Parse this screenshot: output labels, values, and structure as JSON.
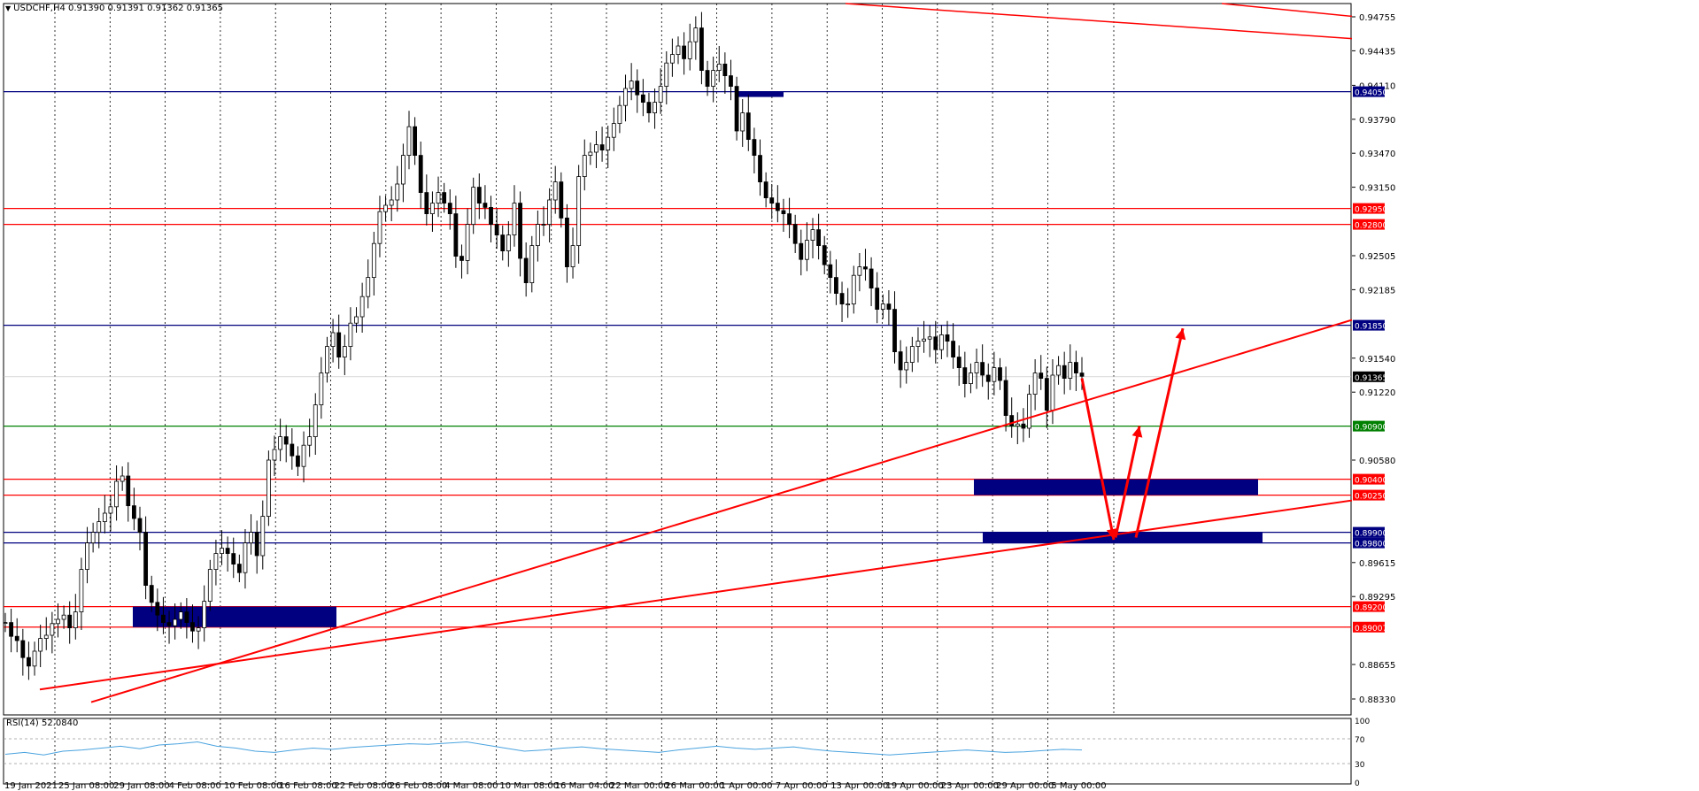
{
  "header": {
    "symbol_line": "USDCHF,H4  0.91390 0.91391 0.91362 0.91365",
    "rsi_label": "RSI(14) 52.0840"
  },
  "colors": {
    "background": "#ffffff",
    "candle": "#000000",
    "red_line": "#ff0000",
    "blue_line": "#000080",
    "green_line": "#008000",
    "zone": "#000080",
    "rsi_line": "#4aa3df",
    "current_price_tag": "#000000"
  },
  "chart_data": {
    "type": "candlestick",
    "symbol": "USDCHF",
    "timeframe": "H4",
    "ohlc_last": {
      "open": 0.9139,
      "high": 0.91391,
      "low": 0.91362,
      "close": 0.91365
    },
    "ylim": [
      0.8818,
      0.9488
    ],
    "y_ticks": [
      "0.94755",
      "0.94435",
      "0.94110",
      "0.93790",
      "0.93470",
      "0.93150",
      "0.92505",
      "0.92185",
      "0.91540",
      "0.91220",
      "0.90580",
      "0.89615",
      "0.89295",
      "0.88655",
      "0.88330"
    ],
    "x_ticks": [
      "19 Jan 2021",
      "25 Jan 08:00",
      "29 Jan 08:00",
      "4 Feb 08:00",
      "10 Feb 08:00",
      "16 Feb 08:00",
      "22 Feb 08:00",
      "26 Feb 08:00",
      "4 Mar 08:00",
      "10 Mar 08:00",
      "16 Mar 04:00",
      "22 Mar 00:00",
      "26 Mar 00:00",
      "1 Apr 00:00",
      "7 Apr 00:00",
      "13 Apr 00:00",
      "19 Apr 00:00",
      "23 Apr 00:00",
      "29 Apr 00:00",
      "5 May 00:00"
    ],
    "price_path": [
      [
        0,
        0.8905
      ],
      [
        1,
        0.8892
      ],
      [
        2,
        0.8888
      ],
      [
        3,
        0.8872
      ],
      [
        4,
        0.8864
      ],
      [
        5,
        0.8878
      ],
      [
        6,
        0.889
      ],
      [
        7,
        0.8893
      ],
      [
        8,
        0.8904
      ],
      [
        9,
        0.8908
      ],
      [
        10,
        0.8912
      ],
      [
        11,
        0.89
      ],
      [
        12,
        0.8915
      ],
      [
        13,
        0.8955
      ],
      [
        14,
        0.898
      ],
      [
        15,
        0.899
      ],
      [
        16,
        0.9
      ],
      [
        17,
        0.9008
      ],
      [
        18,
        0.9014
      ],
      [
        19,
        0.9038
      ],
      [
        20,
        0.9043
      ],
      [
        21,
        0.9015
      ],
      [
        22,
        0.9003
      ],
      [
        23,
        0.899
      ],
      [
        24,
        0.894
      ],
      [
        25,
        0.8924
      ],
      [
        26,
        0.8912
      ],
      [
        27,
        0.8905
      ],
      [
        28,
        0.8902
      ],
      [
        29,
        0.8908
      ],
      [
        30,
        0.8915
      ],
      [
        31,
        0.8905
      ],
      [
        32,
        0.8897
      ],
      [
        33,
        0.89
      ],
      [
        34,
        0.8925
      ],
      [
        35,
        0.8955
      ],
      [
        36,
        0.897
      ],
      [
        37,
        0.8975
      ],
      [
        38,
        0.897
      ],
      [
        39,
        0.896
      ],
      [
        40,
        0.8952
      ],
      [
        41,
        0.898
      ],
      [
        42,
        0.899
      ],
      [
        43,
        0.8968
      ],
      [
        44,
        0.9005
      ],
      [
        45,
        0.9058
      ],
      [
        46,
        0.9068
      ],
      [
        47,
        0.908
      ],
      [
        48,
        0.9073
      ],
      [
        49,
        0.9062
      ],
      [
        50,
        0.9052
      ],
      [
        51,
        0.9072
      ],
      [
        52,
        0.908
      ],
      [
        53,
        0.911
      ],
      [
        54,
        0.914
      ],
      [
        55,
        0.9165
      ],
      [
        56,
        0.9178
      ],
      [
        57,
        0.9155
      ],
      [
        58,
        0.9165
      ],
      [
        59,
        0.9187
      ],
      [
        60,
        0.9193
      ],
      [
        61,
        0.9212
      ],
      [
        62,
        0.923
      ],
      [
        63,
        0.9262
      ],
      [
        64,
        0.9292
      ],
      [
        65,
        0.9298
      ],
      [
        66,
        0.9303
      ],
      [
        67,
        0.9318
      ],
      [
        68,
        0.9345
      ],
      [
        69,
        0.9372
      ],
      [
        70,
        0.9345
      ],
      [
        71,
        0.931
      ],
      [
        72,
        0.929
      ],
      [
        73,
        0.93
      ],
      [
        74,
        0.931
      ],
      [
        75,
        0.93
      ],
      [
        76,
        0.929
      ],
      [
        77,
        0.925
      ],
      [
        78,
        0.9246
      ],
      [
        79,
        0.928
      ],
      [
        80,
        0.9315
      ],
      [
        81,
        0.93
      ],
      [
        82,
        0.9296
      ],
      [
        83,
        0.928
      ],
      [
        84,
        0.927
      ],
      [
        85,
        0.9255
      ],
      [
        86,
        0.927
      ],
      [
        87,
        0.93
      ],
      [
        88,
        0.9248
      ],
      [
        89,
        0.9225
      ],
      [
        90,
        0.926
      ],
      [
        91,
        0.928
      ],
      [
        92,
        0.928
      ],
      [
        93,
        0.9303
      ],
      [
        94,
        0.932
      ],
      [
        95,
        0.9286
      ],
      [
        96,
        0.924
      ],
      [
        97,
        0.926
      ],
      [
        98,
        0.9325
      ],
      [
        99,
        0.9345
      ],
      [
        100,
        0.9348
      ],
      [
        101,
        0.9355
      ],
      [
        102,
        0.935
      ],
      [
        103,
        0.9362
      ],
      [
        104,
        0.9375
      ],
      [
        105,
        0.9392
      ],
      [
        106,
        0.9408
      ],
      [
        107,
        0.9415
      ],
      [
        108,
        0.9402
      ],
      [
        109,
        0.9395
      ],
      [
        110,
        0.9385
      ],
      [
        111,
        0.9395
      ],
      [
        112,
        0.941
      ],
      [
        113,
        0.9432
      ],
      [
        114,
        0.944
      ],
      [
        115,
        0.9448
      ],
      [
        116,
        0.9436
      ],
      [
        117,
        0.9452
      ],
      [
        118,
        0.9465
      ],
      [
        119,
        0.9425
      ],
      [
        120,
        0.941
      ],
      [
        121,
        0.9425
      ],
      [
        122,
        0.9431
      ],
      [
        123,
        0.942
      ],
      [
        124,
        0.941
      ],
      [
        125,
        0.9368
      ],
      [
        126,
        0.9385
      ],
      [
        127,
        0.936
      ],
      [
        128,
        0.9345
      ],
      [
        129,
        0.932
      ],
      [
        130,
        0.9305
      ],
      [
        131,
        0.93
      ],
      [
        132,
        0.9293
      ],
      [
        133,
        0.929
      ],
      [
        134,
        0.928
      ],
      [
        135,
        0.9262
      ],
      [
        136,
        0.9247
      ],
      [
        137,
        0.9265
      ],
      [
        138,
        0.9275
      ],
      [
        139,
        0.926
      ],
      [
        140,
        0.9242
      ],
      [
        141,
        0.923
      ],
      [
        142,
        0.9215
      ],
      [
        143,
        0.9205
      ],
      [
        144,
        0.9205
      ],
      [
        145,
        0.9232
      ],
      [
        146,
        0.924
      ],
      [
        147,
        0.9238
      ],
      [
        148,
        0.922
      ],
      [
        149,
        0.92
      ],
      [
        150,
        0.9205
      ],
      [
        151,
        0.92
      ],
      [
        152,
        0.916
      ],
      [
        153,
        0.9143
      ],
      [
        154,
        0.915
      ],
      [
        155,
        0.9165
      ],
      [
        156,
        0.917
      ],
      [
        157,
        0.9172
      ],
      [
        158,
        0.9174
      ],
      [
        159,
        0.9162
      ],
      [
        160,
        0.9176
      ],
      [
        161,
        0.917
      ],
      [
        162,
        0.9155
      ],
      [
        163,
        0.9145
      ],
      [
        164,
        0.913
      ],
      [
        165,
        0.914
      ],
      [
        166,
        0.915
      ],
      [
        167,
        0.9138
      ],
      [
        168,
        0.9132
      ],
      [
        169,
        0.9145
      ],
      [
        170,
        0.9133
      ],
      [
        171,
        0.91
      ],
      [
        172,
        0.909
      ],
      [
        173,
        0.9092
      ],
      [
        174,
        0.9088
      ],
      [
        175,
        0.912
      ],
      [
        176,
        0.914
      ],
      [
        177,
        0.9135
      ],
      [
        178,
        0.9105
      ],
      [
        179,
        0.9138
      ],
      [
        180,
        0.9147
      ],
      [
        181,
        0.9135
      ],
      [
        182,
        0.915
      ],
      [
        183,
        0.914
      ],
      [
        184,
        0.9137
      ]
    ],
    "horizontal_levels": [
      {
        "label": "0.94050",
        "value": 0.9405,
        "color": "blue"
      },
      {
        "label": "0.92950",
        "value": 0.9295,
        "color": "red"
      },
      {
        "label": "0.92800",
        "value": 0.928,
        "color": "red"
      },
      {
        "label": "0.91850",
        "value": 0.9185,
        "color": "blue"
      },
      {
        "label": "0.91365",
        "value": 0.91365,
        "color": "current"
      },
      {
        "label": "0.90900",
        "value": 0.909,
        "color": "green"
      },
      {
        "label": "0.90400",
        "value": 0.904,
        "color": "red"
      },
      {
        "label": "0.90250",
        "value": 0.9025,
        "color": "red"
      },
      {
        "label": "0.89900",
        "value": 0.899,
        "color": "blue"
      },
      {
        "label": "0.89800",
        "value": 0.898,
        "color": "blue"
      },
      {
        "label": "0.89200",
        "value": 0.892,
        "color": "red"
      },
      {
        "label": "0.89007",
        "value": 0.89007,
        "color": "red"
      }
    ],
    "rsi": {
      "name": "RSI(14)",
      "value": 52.084,
      "levels": [
        "100",
        "70",
        "30",
        "0"
      ],
      "path": [
        45,
        48,
        44,
        50,
        52,
        55,
        58,
        54,
        60,
        62,
        65,
        58,
        55,
        50,
        48,
        52,
        55,
        53,
        56,
        58,
        60,
        62,
        61,
        63,
        65,
        60,
        55,
        50,
        52,
        55,
        57,
        54,
        52,
        50,
        48,
        52,
        55,
        58,
        55,
        53,
        55,
        57,
        53,
        50,
        48,
        46,
        44,
        46,
        48,
        50,
        52,
        50,
        48,
        49,
        51,
        53,
        52
      ]
    }
  }
}
